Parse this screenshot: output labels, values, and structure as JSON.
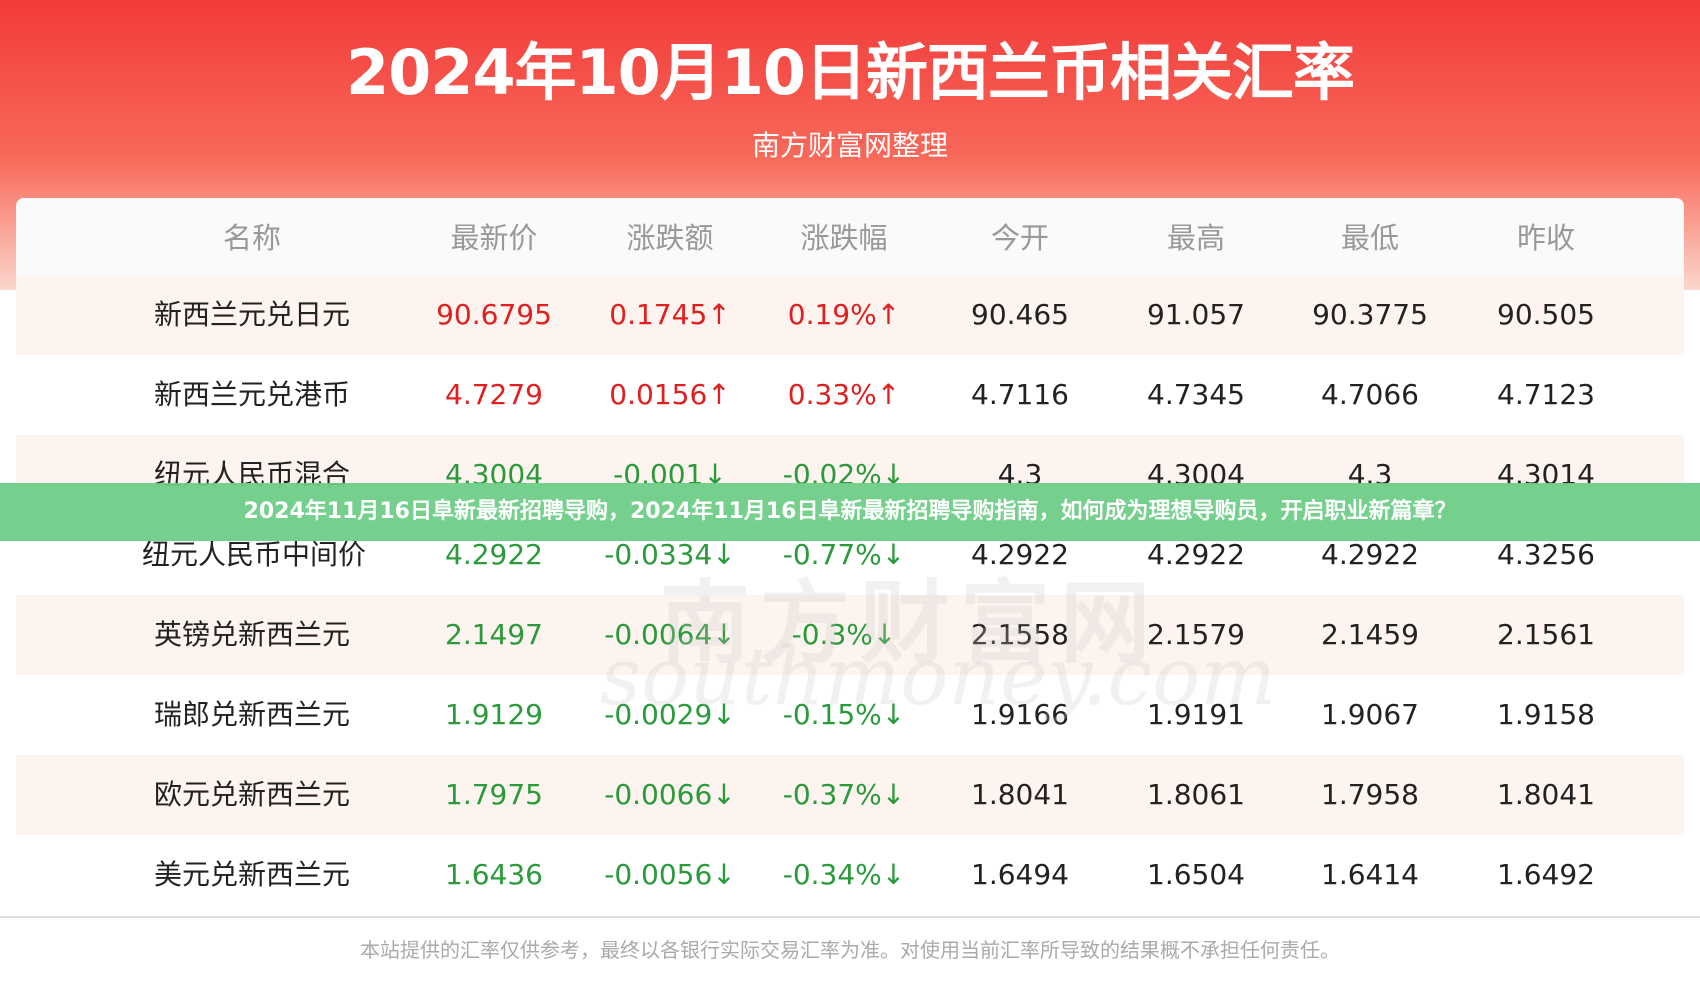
{
  "header": {
    "title": "2024年10月10日新西兰币相关汇率",
    "subtitle": "南方财富网整理"
  },
  "table": {
    "columns": [
      "名称",
      "最新价",
      "涨跌额",
      "涨跌幅",
      "今开",
      "最高",
      "最低",
      "昨收"
    ],
    "rows": [
      [
        "新西兰元兑日元",
        "90.6795",
        "0.1745↑",
        "0.19%↑",
        "90.465",
        "91.057",
        "90.3775",
        "90.505"
      ],
      [
        "新西兰元兑港币",
        "4.7279",
        "0.0156↑",
        "0.33%↑",
        "4.7116",
        "4.7345",
        "4.7066",
        "4.7123"
      ],
      [
        "纽元人民币混合",
        "4.3004",
        "-0.001↓",
        "-0.02%↓",
        "4.3",
        "4.3004",
        "4.3",
        "4.3014"
      ],
      [
        "纽元人民币中间价",
        "4.2922",
        "-0.0334↓",
        "-0.77%↓",
        "4.2922",
        "4.2922",
        "4.2922",
        "4.3256"
      ],
      [
        "英镑兑新西兰元",
        "2.1497",
        "-0.0064↓",
        "-0.3%↓",
        "2.1558",
        "2.1579",
        "2.1459",
        "2.1561"
      ],
      [
        "瑞郎兑新西兰元",
        "1.9129",
        "-0.0029↓",
        "-0.15%↓",
        "1.9166",
        "1.9191",
        "1.9067",
        "1.9158"
      ],
      [
        "欧元兑新西兰元",
        "1.7975",
        "-0.0066↓",
        "-0.37%↓",
        "1.8041",
        "1.8061",
        "1.7958",
        "1.8041"
      ],
      [
        "美元兑新西兰元",
        "1.6436",
        "-0.0056↓",
        "-0.34%↓",
        "1.6494",
        "1.6504",
        "1.6414",
        "1.6492"
      ]
    ]
  },
  "watermark": {
    "cn": "南方财富网",
    "en": "southmoney.com"
  },
  "banner": "2024年11月16日阜新最新招聘导购，2024年11月16日阜新最新招聘导购指南，如何成为理想导购员，开启职业新篇章？",
  "footer": "本站提供的汇率仅供参考，最终以各银行实际交易汇率为准。对使用当前汇率所导致的结果概不承担任何责任。"
}
